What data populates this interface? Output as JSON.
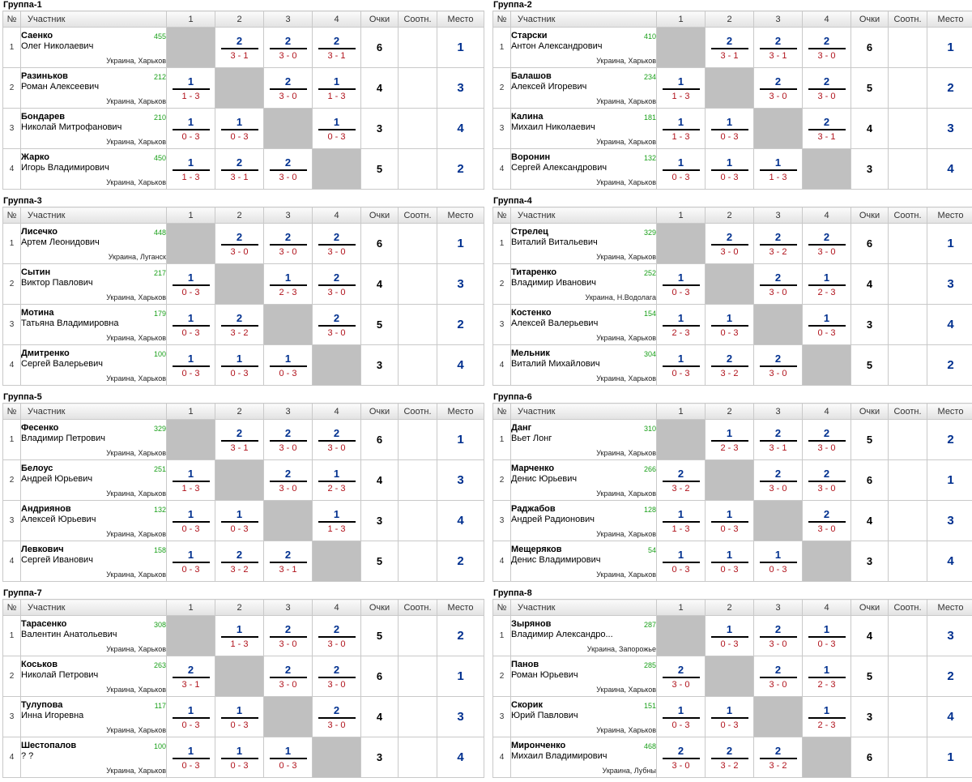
{
  "headers": {
    "num": "№",
    "participant": "Участник",
    "cols": [
      "1",
      "2",
      "3",
      "4"
    ],
    "points": "Очки",
    "ratio": "Соотн.",
    "place": "Место"
  },
  "groups": [
    {
      "title": "Группа-1",
      "rows": [
        {
          "n": "1",
          "last": "Саенко",
          "first": "Олег Николаевич",
          "rating": "455",
          "city": "Украина, Харьков",
          "results": [
            null,
            {
              "p": "2",
              "s": "3 - 1"
            },
            {
              "p": "2",
              "s": "3 - 0"
            },
            {
              "p": "2",
              "s": "3 - 1"
            }
          ],
          "points": "6",
          "ratio": "",
          "place": "1"
        },
        {
          "n": "2",
          "last": "Разиньков",
          "first": "Роман Алексеевич",
          "rating": "212",
          "city": "Украина, Харьков",
          "results": [
            {
              "p": "1",
              "s": "1 - 3"
            },
            null,
            {
              "p": "2",
              "s": "3 - 0"
            },
            {
              "p": "1",
              "s": "1 - 3"
            }
          ],
          "points": "4",
          "ratio": "",
          "place": "3"
        },
        {
          "n": "3",
          "last": "Бондарев",
          "first": "Николай Митрофанович",
          "rating": "210",
          "city": "Украина, Харьков",
          "results": [
            {
              "p": "1",
              "s": "0 - 3"
            },
            {
              "p": "1",
              "s": "0 - 3"
            },
            null,
            {
              "p": "1",
              "s": "0 - 3"
            }
          ],
          "points": "3",
          "ratio": "",
          "place": "4"
        },
        {
          "n": "4",
          "last": "Жарко",
          "first": "Игорь Владимирович",
          "rating": "450",
          "city": "Украина, Харьков",
          "results": [
            {
              "p": "1",
              "s": "1 - 3"
            },
            {
              "p": "2",
              "s": "3 - 1"
            },
            {
              "p": "2",
              "s": "3 - 0"
            },
            null
          ],
          "points": "5",
          "ratio": "",
          "place": "2"
        }
      ]
    },
    {
      "title": "Группа-2",
      "rows": [
        {
          "n": "1",
          "last": "Старски",
          "first": "Антон Александрович",
          "rating": "410",
          "city": "Украина, Харьков",
          "results": [
            null,
            {
              "p": "2",
              "s": "3 - 1"
            },
            {
              "p": "2",
              "s": "3 - 1"
            },
            {
              "p": "2",
              "s": "3 - 0"
            }
          ],
          "points": "6",
          "ratio": "",
          "place": "1"
        },
        {
          "n": "2",
          "last": "Балашов",
          "first": "Алексей Игоревич",
          "rating": "234",
          "city": "Украина, Харьков",
          "results": [
            {
              "p": "1",
              "s": "1 - 3"
            },
            null,
            {
              "p": "2",
              "s": "3 - 0"
            },
            {
              "p": "2",
              "s": "3 - 0"
            }
          ],
          "points": "5",
          "ratio": "",
          "place": "2"
        },
        {
          "n": "3",
          "last": "Калина",
          "first": "Михаил Николаевич",
          "rating": "181",
          "city": "Украина, Харьков",
          "results": [
            {
              "p": "1",
              "s": "1 - 3"
            },
            {
              "p": "1",
              "s": "0 - 3"
            },
            null,
            {
              "p": "2",
              "s": "3 - 1"
            }
          ],
          "points": "4",
          "ratio": "",
          "place": "3"
        },
        {
          "n": "4",
          "last": "Воронин",
          "first": "Сергей Александрович",
          "rating": "132",
          "city": "Украина, Харьков",
          "results": [
            {
              "p": "1",
              "s": "0 - 3"
            },
            {
              "p": "1",
              "s": "0 - 3"
            },
            {
              "p": "1",
              "s": "1 - 3"
            },
            null
          ],
          "points": "3",
          "ratio": "",
          "place": "4"
        }
      ]
    },
    {
      "title": "Группа-3",
      "rows": [
        {
          "n": "1",
          "last": "Лисечко",
          "first": "Артем Леонидович",
          "rating": "448",
          "city": "Украина, Луганск",
          "results": [
            null,
            {
              "p": "2",
              "s": "3 - 0"
            },
            {
              "p": "2",
              "s": "3 - 0"
            },
            {
              "p": "2",
              "s": "3 - 0"
            }
          ],
          "points": "6",
          "ratio": "",
          "place": "1"
        },
        {
          "n": "2",
          "last": "Сытин",
          "first": "Виктор Павлович",
          "rating": "217",
          "city": "Украина, Харьков",
          "results": [
            {
              "p": "1",
              "s": "0 - 3"
            },
            null,
            {
              "p": "1",
              "s": "2 - 3"
            },
            {
              "p": "2",
              "s": "3 - 0"
            }
          ],
          "points": "4",
          "ratio": "",
          "place": "3"
        },
        {
          "n": "3",
          "last": "Мотина",
          "first": "Татьяна Владимировна",
          "rating": "179",
          "city": "Украина, Харьков",
          "results": [
            {
              "p": "1",
              "s": "0 - 3"
            },
            {
              "p": "2",
              "s": "3 - 2"
            },
            null,
            {
              "p": "2",
              "s": "3 - 0"
            }
          ],
          "points": "5",
          "ratio": "",
          "place": "2"
        },
        {
          "n": "4",
          "last": "Дмитренко",
          "first": "Сергей Валерьевич",
          "rating": "100",
          "city": "Украина, Харьков",
          "results": [
            {
              "p": "1",
              "s": "0 - 3"
            },
            {
              "p": "1",
              "s": "0 - 3"
            },
            {
              "p": "1",
              "s": "0 - 3"
            },
            null
          ],
          "points": "3",
          "ratio": "",
          "place": "4"
        }
      ]
    },
    {
      "title": "Группа-4",
      "rows": [
        {
          "n": "1",
          "last": "Стрелец",
          "first": "Виталий Витальевич",
          "rating": "329",
          "city": "Украина, Харьков",
          "results": [
            null,
            {
              "p": "2",
              "s": "3 - 0"
            },
            {
              "p": "2",
              "s": "3 - 2"
            },
            {
              "p": "2",
              "s": "3 - 0"
            }
          ],
          "points": "6",
          "ratio": "",
          "place": "1"
        },
        {
          "n": "2",
          "last": "Титаренко",
          "first": "Владимир Иванович",
          "rating": "252",
          "city": "Украина, Н.Водолага",
          "results": [
            {
              "p": "1",
              "s": "0 - 3"
            },
            null,
            {
              "p": "2",
              "s": "3 - 0"
            },
            {
              "p": "1",
              "s": "2 - 3"
            }
          ],
          "points": "4",
          "ratio": "",
          "place": "3"
        },
        {
          "n": "3",
          "last": "Костенко",
          "first": "Алексей Валерьевич",
          "rating": "154",
          "city": "Украина, Харьков",
          "results": [
            {
              "p": "1",
              "s": "2 - 3"
            },
            {
              "p": "1",
              "s": "0 - 3"
            },
            null,
            {
              "p": "1",
              "s": "0 - 3"
            }
          ],
          "points": "3",
          "ratio": "",
          "place": "4"
        },
        {
          "n": "4",
          "last": "Мельник",
          "first": "Виталий Михайлович",
          "rating": "304",
          "city": "Украина, Харьков",
          "results": [
            {
              "p": "1",
              "s": "0 - 3"
            },
            {
              "p": "2",
              "s": "3 - 2"
            },
            {
              "p": "2",
              "s": "3 - 0"
            },
            null
          ],
          "points": "5",
          "ratio": "",
          "place": "2"
        }
      ]
    },
    {
      "title": "Группа-5",
      "rows": [
        {
          "n": "1",
          "last": "Фесенко",
          "first": "Владимир Петрович",
          "rating": "329",
          "city": "Украина, Харьков",
          "results": [
            null,
            {
              "p": "2",
              "s": "3 - 1"
            },
            {
              "p": "2",
              "s": "3 - 0"
            },
            {
              "p": "2",
              "s": "3 - 0"
            }
          ],
          "points": "6",
          "ratio": "",
          "place": "1"
        },
        {
          "n": "2",
          "last": "Белоус",
          "first": "Андрей Юрьевич",
          "rating": "251",
          "city": "Украина, Харьков",
          "results": [
            {
              "p": "1",
              "s": "1 - 3"
            },
            null,
            {
              "p": "2",
              "s": "3 - 0"
            },
            {
              "p": "1",
              "s": "2 - 3"
            }
          ],
          "points": "4",
          "ratio": "",
          "place": "3"
        },
        {
          "n": "3",
          "last": "Андриянов",
          "first": "Алексей Юрьевич",
          "rating": "132",
          "city": "Украина, Харьков",
          "results": [
            {
              "p": "1",
              "s": "0 - 3"
            },
            {
              "p": "1",
              "s": "0 - 3"
            },
            null,
            {
              "p": "1",
              "s": "1 - 3"
            }
          ],
          "points": "3",
          "ratio": "",
          "place": "4"
        },
        {
          "n": "4",
          "last": "Левкович",
          "first": "Сергей Иванович",
          "rating": "158",
          "city": "Украина, Харьков",
          "results": [
            {
              "p": "1",
              "s": "0 - 3"
            },
            {
              "p": "2",
              "s": "3 - 2"
            },
            {
              "p": "2",
              "s": "3 - 1"
            },
            null
          ],
          "points": "5",
          "ratio": "",
          "place": "2"
        }
      ]
    },
    {
      "title": "Группа-6",
      "rows": [
        {
          "n": "1",
          "last": "Данг",
          "first": "Вьет Лонг",
          "rating": "310",
          "city": "Украина, Харьков",
          "results": [
            null,
            {
              "p": "1",
              "s": "2 - 3"
            },
            {
              "p": "2",
              "s": "3 - 1"
            },
            {
              "p": "2",
              "s": "3 - 0"
            }
          ],
          "points": "5",
          "ratio": "",
          "place": "2"
        },
        {
          "n": "2",
          "last": "Марченко",
          "first": "Денис Юрьевич",
          "rating": "266",
          "city": "Украина, Харьков",
          "results": [
            {
              "p": "2",
              "s": "3 - 2"
            },
            null,
            {
              "p": "2",
              "s": "3 - 0"
            },
            {
              "p": "2",
              "s": "3 - 0"
            }
          ],
          "points": "6",
          "ratio": "",
          "place": "1"
        },
        {
          "n": "3",
          "last": "Раджабов",
          "first": "Андрей Радионович",
          "rating": "128",
          "city": "Украина, Харьков",
          "results": [
            {
              "p": "1",
              "s": "1 - 3"
            },
            {
              "p": "1",
              "s": "0 - 3"
            },
            null,
            {
              "p": "2",
              "s": "3 - 0"
            }
          ],
          "points": "4",
          "ratio": "",
          "place": "3"
        },
        {
          "n": "4",
          "last": "Мещеряков",
          "first": "Денис Владимирович",
          "rating": "54",
          "city": "Украина, Харьков",
          "results": [
            {
              "p": "1",
              "s": "0 - 3"
            },
            {
              "p": "1",
              "s": "0 - 3"
            },
            {
              "p": "1",
              "s": "0 - 3"
            },
            null
          ],
          "points": "3",
          "ratio": "",
          "place": "4"
        }
      ]
    },
    {
      "title": "Группа-7",
      "rows": [
        {
          "n": "1",
          "last": "Тарасенко",
          "first": "Валентин Анатольевич",
          "rating": "308",
          "city": "Украина, Харьков",
          "results": [
            null,
            {
              "p": "1",
              "s": "1 - 3"
            },
            {
              "p": "2",
              "s": "3 - 0"
            },
            {
              "p": "2",
              "s": "3 - 0"
            }
          ],
          "points": "5",
          "ratio": "",
          "place": "2"
        },
        {
          "n": "2",
          "last": "Коськов",
          "first": "Николай Петрович",
          "rating": "263",
          "city": "Украина, Харьков",
          "results": [
            {
              "p": "2",
              "s": "3 - 1"
            },
            null,
            {
              "p": "2",
              "s": "3 - 0"
            },
            {
              "p": "2",
              "s": "3 - 0"
            }
          ],
          "points": "6",
          "ratio": "",
          "place": "1"
        },
        {
          "n": "3",
          "last": "Тулупова",
          "first": "Инна Игоревна",
          "rating": "117",
          "city": "Украина, Харьков",
          "results": [
            {
              "p": "1",
              "s": "0 - 3"
            },
            {
              "p": "1",
              "s": "0 - 3"
            },
            null,
            {
              "p": "2",
              "s": "3 - 0"
            }
          ],
          "points": "4",
          "ratio": "",
          "place": "3"
        },
        {
          "n": "4",
          "last": "Шестопалов",
          "first": "? ?",
          "rating": "100",
          "city": "Украина, Харьков",
          "results": [
            {
              "p": "1",
              "s": "0 - 3"
            },
            {
              "p": "1",
              "s": "0 - 3"
            },
            {
              "p": "1",
              "s": "0 - 3"
            },
            null
          ],
          "points": "3",
          "ratio": "",
          "place": "4"
        }
      ]
    },
    {
      "title": "Группа-8",
      "rows": [
        {
          "n": "1",
          "last": "Зырянов",
          "first": "Владимир Александро...",
          "rating": "287",
          "city": "Украина, Запорожье",
          "results": [
            null,
            {
              "p": "1",
              "s": "0 - 3"
            },
            {
              "p": "2",
              "s": "3 - 0"
            },
            {
              "p": "1",
              "s": "0 - 3"
            }
          ],
          "points": "4",
          "ratio": "",
          "place": "3"
        },
        {
          "n": "2",
          "last": "Панов",
          "first": "Роман Юрьевич",
          "rating": "285",
          "city": "Украина, Харьков",
          "results": [
            {
              "p": "2",
              "s": "3 - 0"
            },
            null,
            {
              "p": "2",
              "s": "3 - 0"
            },
            {
              "p": "1",
              "s": "2 - 3"
            }
          ],
          "points": "5",
          "ratio": "",
          "place": "2"
        },
        {
          "n": "3",
          "last": "Скорик",
          "first": "Юрий Павлович",
          "rating": "151",
          "city": "Украина, Харьков",
          "results": [
            {
              "p": "1",
              "s": "0 - 3"
            },
            {
              "p": "1",
              "s": "0 - 3"
            },
            null,
            {
              "p": "1",
              "s": "2 - 3"
            }
          ],
          "points": "3",
          "ratio": "",
          "place": "4"
        },
        {
          "n": "4",
          "last": "Миронченко",
          "first": "Михаил Владимирович",
          "rating": "468",
          "city": "Украина, Лубны",
          "results": [
            {
              "p": "2",
              "s": "3 - 0"
            },
            {
              "p": "2",
              "s": "3 - 2"
            },
            {
              "p": "2",
              "s": "3 - 2"
            },
            null
          ],
          "points": "6",
          "ratio": "",
          "place": "1"
        }
      ]
    }
  ]
}
